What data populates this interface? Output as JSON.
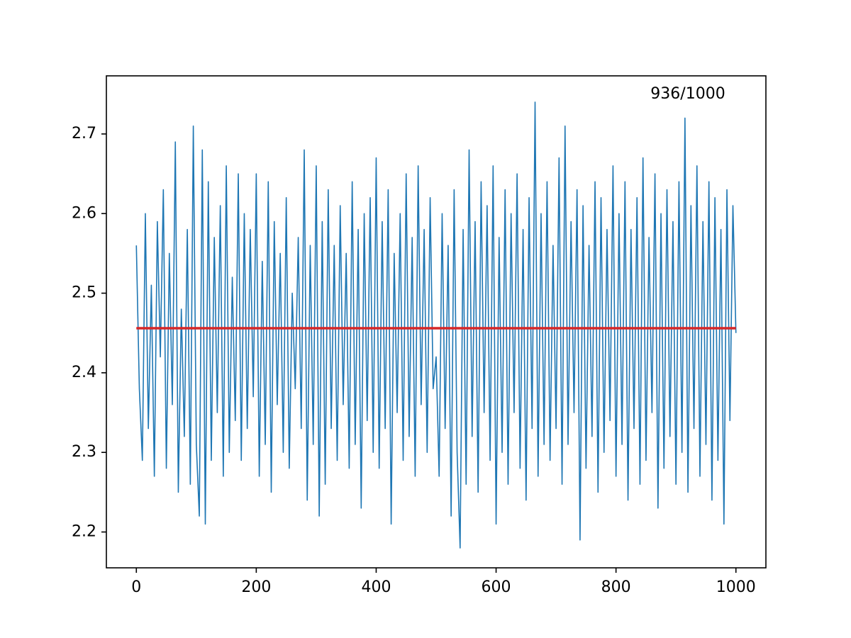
{
  "chart_data": {
    "type": "line",
    "annotation": "936/1000",
    "xlim": [
      -50,
      1050
    ],
    "xticks": [
      0,
      200,
      400,
      600,
      800,
      1000
    ],
    "ylim": [
      2.155,
      2.773
    ],
    "yticks": [
      2.2,
      2.3,
      2.4,
      2.5,
      2.6,
      2.7
    ],
    "grid": false,
    "series": [
      {
        "color": "#1f77b4",
        "width": 1.6,
        "x": [
          0,
          5,
          10,
          15,
          20,
          25,
          30,
          35,
          40,
          45,
          50,
          55,
          60,
          65,
          70,
          75,
          80,
          85,
          90,
          95,
          100,
          105,
          110,
          115,
          120,
          125,
          130,
          135,
          140,
          145,
          150,
          155,
          160,
          165,
          170,
          175,
          180,
          185,
          190,
          195,
          200,
          205,
          210,
          215,
          220,
          225,
          230,
          235,
          240,
          245,
          250,
          255,
          260,
          265,
          270,
          275,
          280,
          285,
          290,
          295,
          300,
          305,
          310,
          315,
          320,
          325,
          330,
          335,
          340,
          345,
          350,
          355,
          360,
          365,
          370,
          375,
          380,
          385,
          390,
          395,
          400,
          405,
          410,
          415,
          420,
          425,
          430,
          435,
          440,
          445,
          450,
          455,
          460,
          465,
          470,
          475,
          480,
          485,
          490,
          495,
          500,
          505,
          510,
          515,
          520,
          525,
          530,
          535,
          540,
          545,
          550,
          555,
          560,
          565,
          570,
          575,
          580,
          585,
          590,
          595,
          600,
          605,
          610,
          615,
          620,
          625,
          630,
          635,
          640,
          645,
          650,
          655,
          660,
          665,
          670,
          675,
          680,
          685,
          690,
          695,
          700,
          705,
          710,
          715,
          720,
          725,
          730,
          735,
          740,
          745,
          750,
          755,
          760,
          765,
          770,
          775,
          780,
          785,
          790,
          795,
          800,
          805,
          810,
          815,
          820,
          825,
          830,
          835,
          840,
          845,
          850,
          855,
          860,
          865,
          870,
          875,
          880,
          885,
          890,
          895,
          900,
          905,
          910,
          915,
          920,
          925,
          930,
          935,
          940,
          945,
          950,
          955,
          960,
          965,
          970,
          975,
          980,
          985,
          990,
          995,
          1000
        ],
        "values": [
          2.56,
          2.38,
          2.29,
          2.6,
          2.33,
          2.51,
          2.27,
          2.59,
          2.42,
          2.63,
          2.28,
          2.55,
          2.36,
          2.69,
          2.25,
          2.48,
          2.32,
          2.58,
          2.26,
          2.71,
          2.31,
          2.22,
          2.68,
          2.21,
          2.64,
          2.29,
          2.57,
          2.35,
          2.61,
          2.27,
          2.66,
          2.3,
          2.52,
          2.34,
          2.65,
          2.29,
          2.6,
          2.33,
          2.58,
          2.37,
          2.65,
          2.27,
          2.54,
          2.31,
          2.64,
          2.25,
          2.59,
          2.36,
          2.55,
          2.3,
          2.62,
          2.28,
          2.5,
          2.38,
          2.57,
          2.33,
          2.68,
          2.24,
          2.56,
          2.31,
          2.66,
          2.22,
          2.59,
          2.26,
          2.63,
          2.33,
          2.56,
          2.29,
          2.61,
          2.36,
          2.55,
          2.28,
          2.64,
          2.31,
          2.58,
          2.23,
          2.6,
          2.34,
          2.62,
          2.3,
          2.67,
          2.28,
          2.59,
          2.33,
          2.63,
          2.21,
          2.55,
          2.35,
          2.6,
          2.29,
          2.65,
          2.32,
          2.57,
          2.27,
          2.66,
          2.36,
          2.58,
          2.3,
          2.62,
          2.38,
          2.42,
          2.27,
          2.6,
          2.33,
          2.56,
          2.22,
          2.63,
          2.3,
          2.18,
          2.58,
          2.26,
          2.68,
          2.32,
          2.59,
          2.25,
          2.64,
          2.35,
          2.61,
          2.29,
          2.66,
          2.21,
          2.57,
          2.3,
          2.63,
          2.26,
          2.6,
          2.35,
          2.65,
          2.28,
          2.58,
          2.24,
          2.62,
          2.33,
          2.74,
          2.27,
          2.6,
          2.31,
          2.64,
          2.29,
          2.56,
          2.33,
          2.67,
          2.26,
          2.71,
          2.31,
          2.59,
          2.35,
          2.63,
          2.19,
          2.61,
          2.28,
          2.56,
          2.32,
          2.64,
          2.25,
          2.62,
          2.3,
          2.58,
          2.34,
          2.66,
          2.27,
          2.6,
          2.31,
          2.64,
          2.24,
          2.58,
          2.33,
          2.62,
          2.26,
          2.67,
          2.29,
          2.57,
          2.35,
          2.65,
          2.23,
          2.6,
          2.28,
          2.63,
          2.32,
          2.59,
          2.26,
          2.64,
          2.3,
          2.72,
          2.25,
          2.61,
          2.33,
          2.66,
          2.27,
          2.59,
          2.31,
          2.64,
          2.24,
          2.62,
          2.29,
          2.58,
          2.21,
          2.63,
          2.34,
          2.61,
          2.45
        ]
      },
      {
        "color": "#d62728",
        "width": 3.5,
        "x": [
          0,
          1000
        ],
        "values": [
          2.456,
          2.456
        ]
      }
    ]
  }
}
